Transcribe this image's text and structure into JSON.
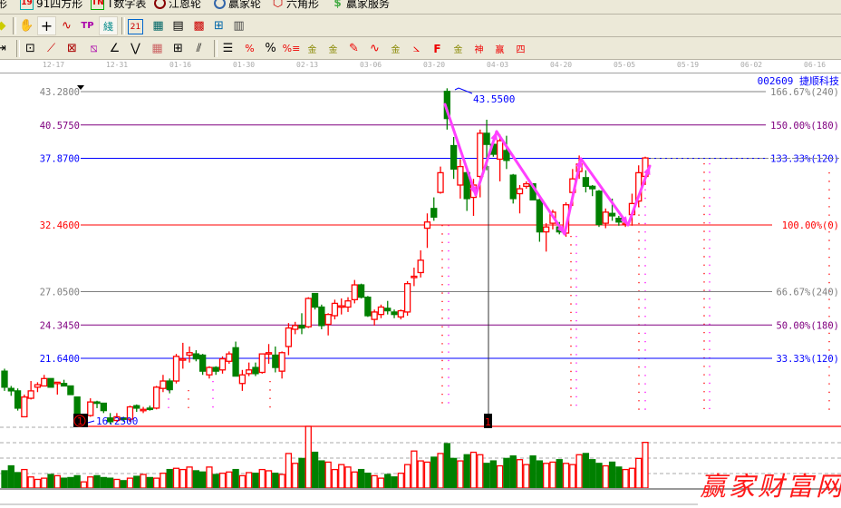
{
  "menu": {
    "items": [
      {
        "label": "形",
        "icon": "draw-shape-icon"
      },
      {
        "label": "91四方形",
        "icon": "square-19-icon",
        "badge": "19"
      },
      {
        "label": "T数字表",
        "icon": "tn-number-table-icon",
        "badge": "TN"
      },
      {
        "label": "江恩轮",
        "icon": "gann-wheel-icon"
      },
      {
        "label": "赢家轮",
        "icon": "winner-wheel-icon"
      },
      {
        "label": "六角形",
        "icon": "hexagon-icon"
      },
      {
        "label": "赢家服务",
        "icon": "dollar-service-icon",
        "badge": "$"
      }
    ]
  },
  "toolbar2": {
    "calendar_badge": "21",
    "tools": [
      "arrow-icon",
      "hand-icon",
      "crosshair-icon",
      "zigzag-icon",
      "tp-icon",
      "pattern-icon",
      "calendar-icon",
      "calculator-icon",
      "notes-icon",
      "save-icon",
      "network-icon",
      "printer-icon"
    ]
  },
  "toolbar3": {
    "percent": "%",
    "labels": [
      "%",
      "金",
      "金",
      "F",
      "金",
      "神",
      "赢",
      "四"
    ]
  },
  "date_axis": [
    "12-17",
    "12-31",
    "01-16",
    "01-30",
    "02-13",
    "03-06",
    "03-20",
    "04-03",
    "04-20",
    "05-05",
    "05-19",
    "06-02",
    "06-16"
  ],
  "stock": {
    "code": "002609",
    "name": "捷顺科技",
    "title": "002609 捷顺科技"
  },
  "levels": [
    {
      "price": 43.28,
      "label": "43.2800",
      "right": "166.67%(240)",
      "color": "#808080"
    },
    {
      "price": 40.575,
      "label": "40.5750",
      "right": "150.00%(180)",
      "color": "#800080"
    },
    {
      "price": 37.87,
      "label": "37.8700",
      "right": "133.33%(120)",
      "color": "#0000ff"
    },
    {
      "price": 32.46,
      "label": "32.4600",
      "right": "100.00%(0)",
      "color": "#ff0000"
    },
    {
      "price": 27.05,
      "label": "27.0500",
      "right": "66.67%(240)",
      "color": "#808080"
    },
    {
      "price": 24.345,
      "label": "24.3450",
      "right": "50.00%(180)",
      "color": "#800080"
    },
    {
      "price": 21.64,
      "label": "21.6400",
      "right": "33.33%(120)",
      "color": "#0000ff"
    }
  ],
  "annotations": {
    "high_label": "43.5500",
    "high_price": 43.55,
    "low_label": "16.2500",
    "low_price": 16.25,
    "marker1": "1",
    "marker2": "1"
  },
  "colors": {
    "up": "#ff0000",
    "down": "#008000",
    "arrow": "#ff40ff",
    "bg": "#ece9d8"
  },
  "watermark": "赢家财富网",
  "chart_data": {
    "type": "candlestick",
    "ylim": [
      16.12,
      43.28
    ],
    "candles_ochl": [
      [
        20.6,
        19.3,
        20.8,
        19.0
      ],
      [
        19.2,
        19.0,
        19.4,
        18.6
      ],
      [
        19.0,
        17.6,
        19.2,
        17.4
      ],
      [
        16.9,
        18.5,
        18.7,
        16.9
      ],
      [
        18.4,
        19.0,
        19.8,
        18.3
      ],
      [
        19.3,
        19.5,
        19.7,
        18.9
      ],
      [
        19.4,
        20.0,
        20.3,
        19.4
      ],
      [
        20.0,
        19.3,
        20.0,
        19.3
      ],
      [
        19.6,
        19.7,
        19.7,
        18.7
      ],
      [
        19.6,
        19.4,
        19.9,
        19.4
      ],
      [
        19.4,
        18.7,
        19.4,
        18.7
      ],
      [
        18.5,
        17.1,
        18.5,
        16.8
      ],
      [
        16.5,
        16.9,
        17.1,
        16.25
      ],
      [
        17.0,
        18.1,
        18.4,
        16.9
      ],
      [
        18.1,
        18.0,
        18.2,
        17.6
      ],
      [
        18.0,
        17.4,
        18.0,
        17.2
      ],
      [
        16.8,
        16.5,
        17.2,
        16.3
      ],
      [
        16.6,
        16.9,
        17.2,
        16.5
      ],
      [
        16.8,
        16.7,
        16.9,
        16.5
      ],
      [
        16.7,
        17.7,
        17.8,
        16.5
      ],
      [
        17.8,
        17.6,
        17.9,
        17.3
      ],
      [
        17.5,
        17.5,
        17.7,
        17.2
      ],
      [
        17.6,
        17.5,
        17.8,
        17.4
      ],
      [
        17.6,
        19.3,
        19.4,
        17.5
      ],
      [
        19.2,
        19.8,
        20.3,
        18.9
      ],
      [
        19.8,
        19.1,
        20.0,
        18.8
      ],
      [
        19.8,
        21.8,
        22.0,
        19.6
      ],
      [
        21.6,
        21.6,
        22.9,
        20.8
      ],
      [
        21.9,
        22.1,
        22.6,
        21.3
      ],
      [
        22.0,
        21.6,
        22.3,
        21.4
      ],
      [
        21.9,
        20.6,
        22.0,
        20.3
      ],
      [
        20.3,
        20.9,
        21.0,
        20.0
      ],
      [
        20.9,
        20.6,
        21.0,
        20.3
      ],
      [
        20.7,
        21.6,
        21.8,
        20.4
      ],
      [
        21.4,
        22.0,
        22.2,
        21.2
      ],
      [
        22.5,
        20.2,
        23.0,
        20.2
      ],
      [
        19.6,
        20.3,
        20.7,
        19.0
      ],
      [
        20.4,
        20.7,
        21.3,
        20.2
      ],
      [
        20.9,
        20.4,
        21.3,
        20.2
      ],
      [
        20.5,
        22.0,
        22.0,
        20.4
      ],
      [
        22.1,
        22.1,
        22.8,
        21.2
      ],
      [
        21.9,
        20.9,
        22.6,
        20.5
      ],
      [
        20.6,
        22.1,
        22.2,
        20.0
      ],
      [
        22.6,
        24.1,
        24.5,
        21.9
      ],
      [
        24.0,
        24.3,
        24.6,
        23.6
      ],
      [
        24.3,
        24.1,
        25.3,
        23.6
      ],
      [
        24.2,
        26.5,
        26.6,
        24.1
      ],
      [
        26.9,
        25.8,
        26.9,
        25.6
      ],
      [
        25.8,
        24.3,
        26.0,
        24.0
      ],
      [
        24.4,
        25.2,
        25.3,
        23.5
      ],
      [
        25.1,
        26.1,
        26.4,
        24.8
      ],
      [
        25.9,
        25.9,
        26.5,
        25.2
      ],
      [
        25.8,
        26.3,
        26.6,
        25.4
      ],
      [
        26.4,
        27.6,
        28.0,
        26.1
      ],
      [
        27.6,
        26.6,
        27.7,
        26.5
      ],
      [
        26.6,
        25.1,
        26.7,
        25.0
      ],
      [
        24.8,
        25.4,
        25.6,
        24.3
      ],
      [
        25.2,
        25.8,
        26.0,
        24.9
      ],
      [
        25.7,
        25.5,
        26.3,
        25.2
      ],
      [
        25.4,
        25.2,
        25.6,
        24.9
      ],
      [
        25.0,
        25.5,
        25.6,
        24.8
      ],
      [
        25.4,
        27.7,
        27.9,
        25.1
      ],
      [
        28.3,
        28.3,
        29.0,
        27.5
      ],
      [
        28.6,
        29.6,
        30.4,
        28.2
      ],
      [
        32.2,
        32.7,
        33.4,
        30.6
      ],
      [
        33.8,
        33.1,
        34.7,
        32.8
      ],
      [
        35.1,
        36.7,
        37.2,
        35.0
      ],
      [
        43.3,
        41.1,
        43.55,
        40.2
      ],
      [
        38.9,
        37.0,
        39.6,
        36.2
      ],
      [
        35.7,
        37.2,
        37.8,
        34.6
      ],
      [
        36.7,
        34.6,
        37.0,
        33.6
      ],
      [
        34.7,
        35.7,
        36.2,
        33.2
      ],
      [
        36.4,
        39.9,
        40.2,
        34.7
      ],
      [
        39.9,
        39.0,
        41.0,
        36.9
      ],
      [
        39.0,
        38.2,
        39.0,
        38.0
      ],
      [
        37.8,
        39.3,
        39.8,
        36.0
      ],
      [
        38.5,
        37.7,
        39.7,
        37.0
      ],
      [
        36.5,
        34.6,
        36.6,
        34.2
      ],
      [
        35.0,
        35.4,
        35.7,
        33.4
      ],
      [
        35.6,
        35.8,
        36.0,
        35.4
      ],
      [
        35.8,
        34.5,
        35.8,
        34.5
      ],
      [
        34.5,
        31.9,
        34.6,
        31.1
      ],
      [
        31.9,
        32.3,
        32.6,
        30.3
      ],
      [
        32.6,
        33.5,
        33.7,
        32.1
      ],
      [
        32.3,
        31.9,
        32.7,
        31.7
      ],
      [
        31.8,
        34.1,
        34.3,
        31.5
      ],
      [
        35.1,
        36.2,
        37.0,
        34.0
      ],
      [
        36.8,
        37.4,
        38.1,
        36.2
      ],
      [
        36.3,
        35.6,
        36.9,
        35.1
      ],
      [
        35.6,
        35.4,
        35.7,
        34.8
      ],
      [
        35.2,
        32.5,
        35.3,
        32.3
      ],
      [
        32.6,
        33.5,
        33.8,
        32.2
      ],
      [
        33.4,
        33.2,
        34.6,
        32.8
      ],
      [
        33.0,
        32.7,
        33.2,
        32.4
      ],
      [
        32.5,
        32.6,
        33.0,
        32.3
      ],
      [
        33.3,
        34.2,
        35.0,
        32.4
      ],
      [
        34.4,
        36.7,
        37.3,
        33.9
      ],
      [
        36.4,
        37.9,
        38.0,
        35.7
      ]
    ],
    "volume_relative": [
      28,
      36,
      25,
      30,
      18,
      14,
      16,
      22,
      20,
      16,
      17,
      20,
      10,
      18,
      20,
      17,
      16,
      14,
      12,
      16,
      19,
      22,
      17,
      16,
      24,
      30,
      32,
      30,
      34,
      28,
      26,
      34,
      22,
      24,
      26,
      30,
      20,
      25,
      24,
      30,
      28,
      24,
      22,
      56,
      40,
      48,
      100,
      58,
      44,
      42,
      30,
      38,
      34,
      26,
      30,
      24,
      20,
      16,
      22,
      18,
      24,
      38,
      60,
      44,
      42,
      50,
      56,
      72,
      48,
      44,
      54,
      58,
      54,
      40,
      44,
      36,
      48,
      52,
      46,
      38,
      52,
      44,
      40,
      42,
      46,
      40,
      38,
      54,
      56,
      46,
      40,
      36,
      42,
      34,
      30,
      32,
      48,
      74
    ],
    "wave_arrows_price": [
      [
        42.2,
        38.7
      ],
      [
        35.0,
        32.6
      ],
      [
        40.4,
        32.0
      ],
      [
        33.5,
        37.8
      ],
      [
        37.4,
        34.6
      ],
      [
        32.7,
        32.4
      ],
      [
        37.1,
        37.3
      ]
    ]
  }
}
